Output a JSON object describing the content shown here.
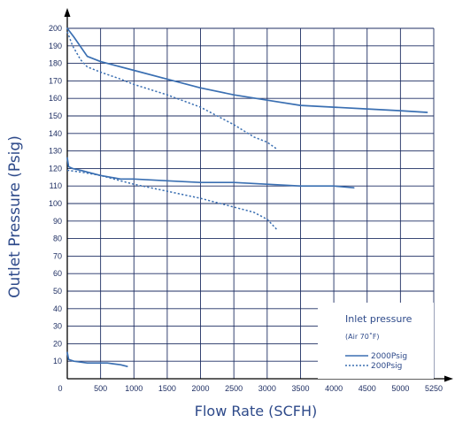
{
  "chart_data": {
    "type": "line",
    "title": "",
    "xlabel": "Flow Rate (SCFH)",
    "ylabel": "Outlet Pressure (Psig)",
    "xlim": [
      0,
      5250
    ],
    "ylim": [
      0,
      200
    ],
    "xticks": [
      0,
      500,
      1000,
      1500,
      2000,
      2500,
      3000,
      3500,
      4000,
      4500,
      5000,
      5250
    ],
    "xtick_labels": [
      "0",
      "500",
      "1000",
      "1500",
      "2000",
      "2500",
      "3000",
      "3500",
      "4000",
      "4500",
      "5000",
      "5250"
    ],
    "yticks": [
      10,
      20,
      30,
      40,
      50,
      60,
      70,
      80,
      90,
      100,
      110,
      120,
      130,
      140,
      150,
      160,
      170,
      180,
      190,
      200
    ],
    "ytick_labels": [
      "10",
      "20",
      "30",
      "40",
      "50",
      "60",
      "70",
      "80",
      "90",
      "100",
      "110",
      "120",
      "130",
      "140",
      "150",
      "160",
      "170",
      "180",
      "190",
      "200"
    ],
    "grid": true,
    "legend": {
      "title": "Inlet pressure",
      "subtitle": "(Air 70˚F)",
      "placement": "bottom-right",
      "entries": [
        {
          "label": "2000Psig",
          "style": "solid"
        },
        {
          "label": "200Psig",
          "style": "dotted"
        }
      ]
    },
    "series": [
      {
        "inlet": "2000Psig",
        "style": "solid",
        "x": [
          0,
          100,
          300,
          500,
          1000,
          1500,
          2000,
          2500,
          3000,
          3500,
          4000,
          4500,
          5000,
          5200
        ],
        "y": [
          200,
          195,
          184,
          181,
          176,
          171,
          166,
          162,
          159,
          156,
          155,
          154,
          153,
          152
        ]
      },
      {
        "inlet": "200Psig",
        "style": "dotted",
        "x": [
          0,
          80,
          200,
          300,
          500,
          800,
          1000,
          1500,
          2000,
          2500,
          2800,
          3000,
          3150
        ],
        "y": [
          198,
          190,
          182,
          178,
          175,
          171,
          168,
          162,
          155,
          145,
          138,
          135,
          131
        ]
      },
      {
        "inlet": "2000Psig",
        "style": "solid",
        "x": [
          0,
          20,
          80,
          200,
          500,
          800,
          1000,
          1500,
          2000,
          2500,
          3000,
          3500,
          4000,
          4300
        ],
        "y": [
          126,
          121,
          120,
          119,
          116,
          114,
          114,
          113,
          112,
          112,
          111,
          110,
          110,
          109
        ]
      },
      {
        "inlet": "200Psig",
        "style": "dotted",
        "x": [
          0,
          200,
          500,
          800,
          1000,
          1500,
          2000,
          2500,
          2800,
          3000,
          3150
        ],
        "y": [
          119,
          118,
          116,
          113,
          111,
          107,
          103,
          98,
          95,
          91,
          85
        ]
      },
      {
        "inlet": "2000Psig",
        "style": "solid",
        "x": [
          0,
          20,
          100,
          300,
          600,
          800,
          900
        ],
        "y": [
          15,
          11,
          10,
          9,
          9,
          8,
          7
        ]
      }
    ],
    "colors": {
      "line": "#3a6fb2",
      "grid": "#1f2f63",
      "text": "#2e4a8a"
    }
  }
}
